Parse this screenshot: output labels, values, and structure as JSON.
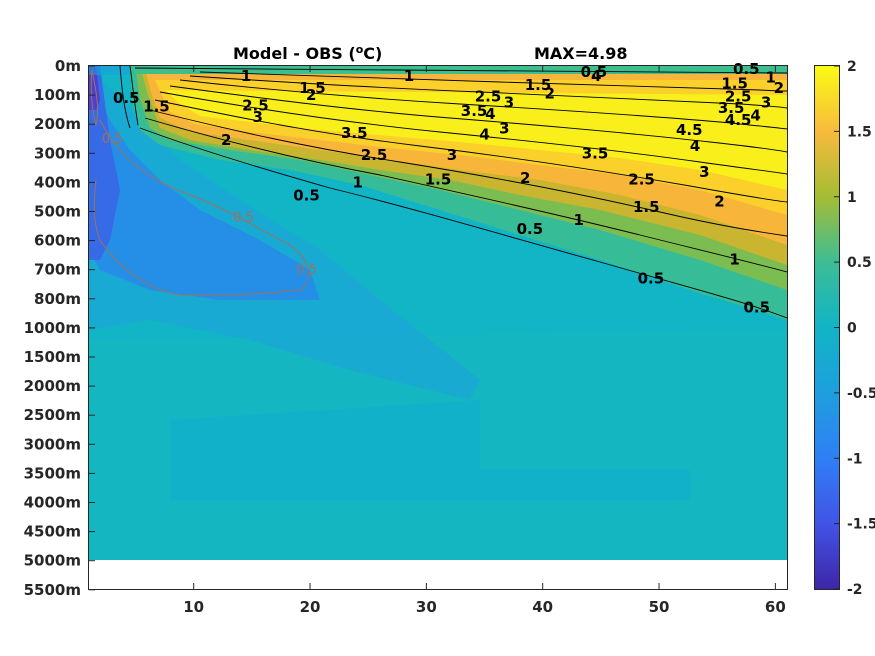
{
  "chart_data": {
    "type": "heatmap",
    "title": "Model - OBS (",
    "title_unit_sup": "o",
    "title_unit_tail": "C)",
    "max_label": "MAX=4.98",
    "x_ticks": [
      "10",
      "20",
      "30",
      "40",
      "50",
      "60"
    ],
    "x_tick_values": [
      10,
      20,
      30,
      40,
      50,
      60
    ],
    "xlim": [
      1,
      61
    ],
    "y_ticks": [
      "0m",
      "100m",
      "200m",
      "300m",
      "400m",
      "500m",
      "600m",
      "700m",
      "800m",
      "1000m",
      "1500m",
      "2000m",
      "2500m",
      "3000m",
      "3500m",
      "4000m",
      "4500m",
      "5000m",
      "5500m"
    ],
    "colorbar": {
      "ticks": [
        "2",
        "1.5",
        "1",
        "0.5",
        "0",
        "-0.5",
        "-1",
        "-1.5",
        "-2"
      ],
      "tick_values": [
        2,
        1.5,
        1,
        0.5,
        0,
        -0.5,
        -1,
        -1.5,
        -2
      ],
      "range": [
        -2,
        2
      ],
      "colormap": "parula"
    },
    "contour_labels": [
      {
        "text": "0.5",
        "x": 4.2,
        "depth_level": 1.1
      },
      {
        "text": "1.5",
        "x": 6.8,
        "depth_level": 1.4
      },
      {
        "text": "1",
        "x": 14.5,
        "depth_level": 0.35
      },
      {
        "text": "1.5",
        "x": 20.2,
        "depth_level": 0.75
      },
      {
        "text": "1",
        "x": 28.5,
        "depth_level": 0.35
      },
      {
        "text": "2",
        "x": 20.1,
        "depth_level": 1.0
      },
      {
        "text": "2.5",
        "x": 15.3,
        "depth_level": 1.35
      },
      {
        "text": "3",
        "x": 15.5,
        "depth_level": 1.75
      },
      {
        "text": "2",
        "x": 12.8,
        "depth_level": 2.55
      },
      {
        "text": "3.5",
        "x": 23.8,
        "depth_level": 2.3
      },
      {
        "text": "2.5",
        "x": 25.5,
        "depth_level": 3.05
      },
      {
        "text": "3.5",
        "x": 34.1,
        "depth_level": 1.55
      },
      {
        "text": "4",
        "x": 35.5,
        "depth_level": 1.65
      },
      {
        "text": "2.5",
        "x": 35.3,
        "depth_level": 1.05
      },
      {
        "text": "3",
        "x": 37.1,
        "depth_level": 1.25
      },
      {
        "text": "4",
        "x": 35.0,
        "depth_level": 2.35
      },
      {
        "text": "3",
        "x": 36.7,
        "depth_level": 2.15
      },
      {
        "text": "3",
        "x": 32.2,
        "depth_level": 3.05
      },
      {
        "text": "1.5",
        "x": 39.6,
        "depth_level": 0.65
      },
      {
        "text": "2",
        "x": 40.6,
        "depth_level": 0.95
      },
      {
        "text": "0.5",
        "x": 44.4,
        "depth_level": 0.2
      },
      {
        "text": "4",
        "x": 44.6,
        "depth_level": 0.35
      },
      {
        "text": "3.5",
        "x": 44.5,
        "depth_level": 3.0
      },
      {
        "text": "2",
        "x": 38.5,
        "depth_level": 3.85
      },
      {
        "text": "2.5",
        "x": 48.5,
        "depth_level": 3.9
      },
      {
        "text": "1.5",
        "x": 48.9,
        "depth_level": 4.85
      },
      {
        "text": "1",
        "x": 43.1,
        "depth_level": 5.3
      },
      {
        "text": "0.5",
        "x": 38.9,
        "depth_level": 5.6
      },
      {
        "text": "1.5",
        "x": 31.0,
        "depth_level": 3.9
      },
      {
        "text": "1",
        "x": 24.1,
        "depth_level": 4.0
      },
      {
        "text": "0.5",
        "x": 19.7,
        "depth_level": 4.45
      },
      {
        "text": "4.5",
        "x": 52.6,
        "depth_level": 2.2
      },
      {
        "text": "4",
        "x": 53.1,
        "depth_level": 2.75
      },
      {
        "text": "3",
        "x": 53.9,
        "depth_level": 3.65
      },
      {
        "text": "2",
        "x": 55.2,
        "depth_level": 4.65
      },
      {
        "text": "1",
        "x": 56.5,
        "depth_level": 6.65
      },
      {
        "text": "0.5",
        "x": 49.3,
        "depth_level": 7.3
      },
      {
        "text": "0.5",
        "x": 58.4,
        "depth_level": 8.3
      },
      {
        "text": "0.5",
        "x": 57.5,
        "depth_level": 0.1
      },
      {
        "text": "1",
        "x": 59.6,
        "depth_level": 0.4
      },
      {
        "text": "2",
        "x": 60.3,
        "depth_level": 0.75
      },
      {
        "text": "1.5",
        "x": 56.5,
        "depth_level": 0.6
      },
      {
        "text": "2.5",
        "x": 56.8,
        "depth_level": 1.05
      },
      {
        "text": "3",
        "x": 59.2,
        "depth_level": 1.25
      },
      {
        "text": "3.5",
        "x": 56.2,
        "depth_level": 1.45
      },
      {
        "text": "4",
        "x": 58.3,
        "depth_level": 1.7
      },
      {
        "text": "4.5",
        "x": 56.8,
        "depth_level": 1.85
      }
    ],
    "negative_contour_labels": [
      {
        "text": "0.5",
        "x": 3.0,
        "depth_level": 2.5
      },
      {
        "text": "0.5",
        "x": 14.3,
        "depth_level": 5.2
      },
      {
        "text": "0.5",
        "x": 19.7,
        "depth_level": 7.0
      }
    ]
  }
}
